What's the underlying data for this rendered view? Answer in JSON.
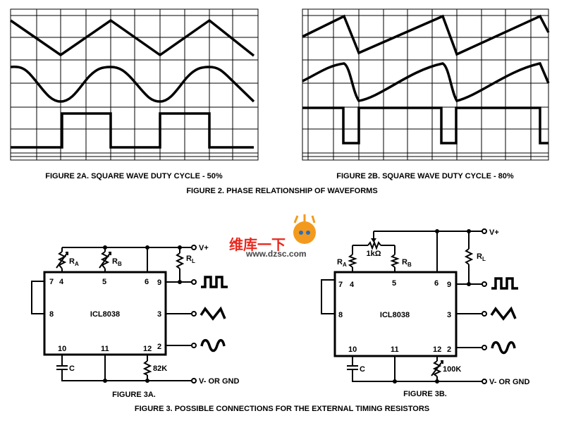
{
  "figure2": {
    "fig2a_caption": "FIGURE 2A.  SQUARE WAVE DUTY CYCLE - 50%",
    "fig2b_caption": "FIGURE 2B.  SQUARE WAVE DUTY CYCLE - 80%",
    "caption": "FIGURE 2.  PHASE RELATIONSHIP OF WAVEFORMS"
  },
  "figure3": {
    "caption": "FIGURE 3.  POSSIBLE CONNECTIONS FOR THE EXTERNAL TIMING RESISTORS",
    "a": {
      "caption": "FIGURE 3A.",
      "chip": "ICL8038",
      "pins": {
        "p7": "7",
        "p4": "4",
        "p5": "5",
        "p6": "6",
        "p9": "9",
        "p8": "8",
        "p3": "3",
        "p10": "10",
        "p11": "11",
        "p12": "12",
        "p2": "2"
      },
      "ra": "R",
      "ra_sub": "A",
      "rb": "R",
      "rb_sub": "B",
      "rl": "R",
      "rl_sub": "L",
      "vplus": "V+",
      "cap": "C",
      "r12": "82K",
      "vminus": "V- OR GND"
    },
    "b": {
      "caption": "FIGURE 3B.",
      "chip": "ICL8038",
      "pins": {
        "p7": "7",
        "p4": "4",
        "p5": "5",
        "p6": "6",
        "p9": "9",
        "p8": "8",
        "p3": "3",
        "p10": "10",
        "p11": "11",
        "p12": "12",
        "p2": "2"
      },
      "ra": "R",
      "ra_sub": "A",
      "rb": "R",
      "rb_sub": "B",
      "rl": "R",
      "rl_sub": "L",
      "pot": "1kΩ",
      "vplus": "V+",
      "cap": "C",
      "r12": "100K",
      "vminus": "V- OR GND"
    }
  },
  "watermark": {
    "logo_text": "维库一下",
    "url": "www.dzsc.com",
    "colors": {
      "red": "#e8281e",
      "orange": "#f39a1e"
    }
  }
}
